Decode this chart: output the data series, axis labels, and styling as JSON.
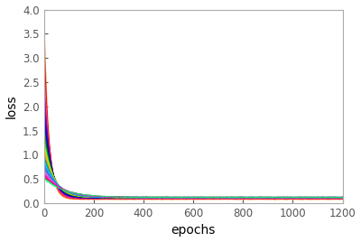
{
  "n_curves": 30,
  "x_max": 1200,
  "xlabel": "epochs",
  "ylabel": "loss",
  "xlim": [
    0,
    1200
  ],
  "ylim": [
    0.0,
    4.0
  ],
  "yticks": [
    0.0,
    0.5,
    1.0,
    1.5,
    2.0,
    2.5,
    3.0,
    3.5,
    4.0
  ],
  "xticks": [
    0,
    200,
    400,
    600,
    800,
    1000,
    1200
  ],
  "colors": [
    "#FF6600",
    "#FF0000",
    "#CC0000",
    "#FF69B4",
    "#FF1493",
    "#9400D3",
    "#8B008B",
    "#4B0082",
    "#0000FF",
    "#0000CD",
    "#00008B",
    "#006400",
    "#008000",
    "#00CC00",
    "#32CD32",
    "#ADFF2F",
    "#FFD700",
    "#FFA500",
    "#FF8C00",
    "#20B2AA",
    "#008B8B",
    "#00CED1",
    "#00BFFF",
    "#1E90FF",
    "#4169E1",
    "#6A5ACD",
    "#DA70D6",
    "#FF00FF",
    "#DC143C",
    "#00FF7F"
  ],
  "curve_params": [
    {
      "a": 3.95,
      "k": 0.055,
      "c": 0.08
    },
    {
      "a": 3.4,
      "k": 0.05,
      "c": 0.09
    },
    {
      "a": 3.1,
      "k": 0.048,
      "c": 0.1
    },
    {
      "a": 2.8,
      "k": 0.046,
      "c": 0.1
    },
    {
      "a": 2.6,
      "k": 0.044,
      "c": 0.1
    },
    {
      "a": 2.4,
      "k": 0.042,
      "c": 0.11
    },
    {
      "a": 2.2,
      "k": 0.04,
      "c": 0.11
    },
    {
      "a": 2.05,
      "k": 0.038,
      "c": 0.11
    },
    {
      "a": 1.9,
      "k": 0.036,
      "c": 0.11
    },
    {
      "a": 1.75,
      "k": 0.034,
      "c": 0.12
    },
    {
      "a": 1.62,
      "k": 0.033,
      "c": 0.12
    },
    {
      "a": 1.5,
      "k": 0.031,
      "c": 0.12
    },
    {
      "a": 1.4,
      "k": 0.03,
      "c": 0.12
    },
    {
      "a": 1.3,
      "k": 0.028,
      "c": 0.12
    },
    {
      "a": 1.22,
      "k": 0.027,
      "c": 0.12
    },
    {
      "a": 1.15,
      "k": 0.026,
      "c": 0.12
    },
    {
      "a": 1.08,
      "k": 0.025,
      "c": 0.12
    },
    {
      "a": 1.02,
      "k": 0.024,
      "c": 0.12
    },
    {
      "a": 0.96,
      "k": 0.023,
      "c": 0.12
    },
    {
      "a": 0.9,
      "k": 0.022,
      "c": 0.12
    },
    {
      "a": 0.85,
      "k": 0.021,
      "c": 0.12
    },
    {
      "a": 0.8,
      "k": 0.02,
      "c": 0.12
    },
    {
      "a": 0.75,
      "k": 0.019,
      "c": 0.12
    },
    {
      "a": 0.7,
      "k": 0.018,
      "c": 0.12
    },
    {
      "a": 0.65,
      "k": 0.017,
      "c": 0.12
    },
    {
      "a": 0.6,
      "k": 0.016,
      "c": 0.12
    },
    {
      "a": 0.55,
      "k": 0.015,
      "c": 0.12
    },
    {
      "a": 0.5,
      "k": 0.014,
      "c": 0.12
    },
    {
      "a": 0.45,
      "k": 0.013,
      "c": 0.12
    },
    {
      "a": 0.4,
      "k": 0.012,
      "c": 0.12
    }
  ],
  "linewidth": 0.75,
  "alpha": 0.85,
  "background_color": "#ffffff",
  "spine_color": "#aaaaaa",
  "tick_color": "#555555",
  "label_fontsize": 10,
  "tick_labelsize": 8.5
}
